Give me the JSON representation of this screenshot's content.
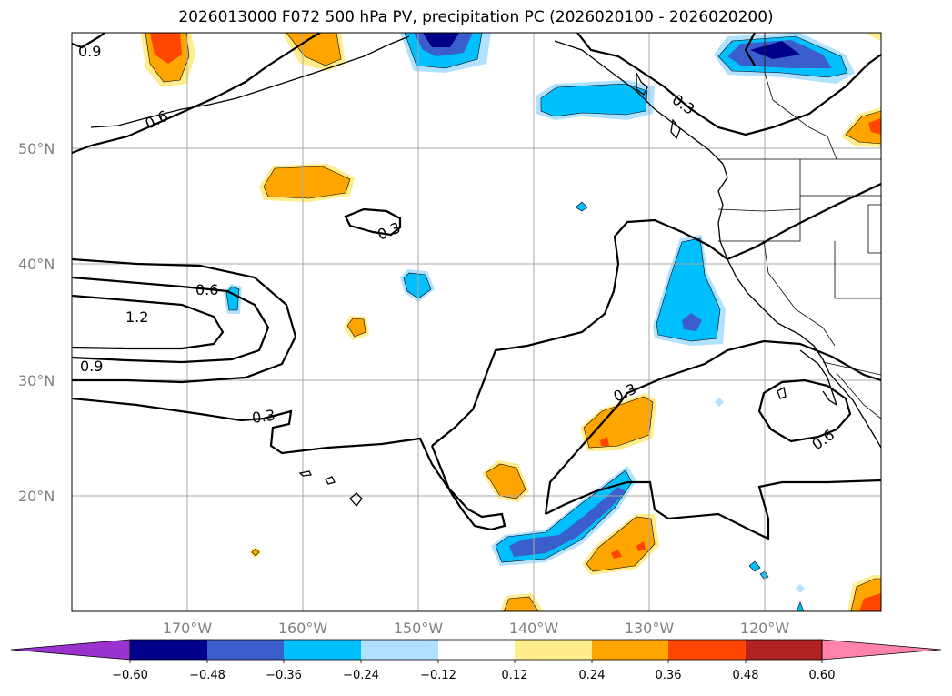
{
  "title": "2026013000 F072 500 hPa PV, precipitation PC (2026020100 - 2026020200)",
  "map": {
    "lat_labels": [
      "50°N",
      "40°N",
      "30°N",
      "20°N"
    ],
    "lon_labels": [
      "170°W",
      "160°W",
      "150°W",
      "140°W",
      "130°W",
      "120°W"
    ]
  },
  "contour_labels": [
    "0.9",
    "0.6",
    "0.3",
    "0.3",
    "0.6",
    "1.2",
    "0.9",
    "0.3",
    "0.3",
    "0.6"
  ],
  "colorbar": {
    "ticks": [
      "−0.60",
      "−0.48",
      "−0.36",
      "−0.24",
      "−0.12",
      "0.12",
      "0.24",
      "0.36",
      "0.48",
      "0.60"
    ],
    "colors": [
      "#9a32cd",
      "#00008b",
      "#3a5fcd",
      "#00bfff",
      "#b0e2ff",
      "#ffffff",
      "#ffec8b",
      "#ffa500",
      "#ff4500",
      "#b22222",
      "#ff82ab"
    ]
  },
  "fill_colors": {
    "neg_light": "#b0e2ff",
    "neg_mid": "#00bfff",
    "neg_dark": "#3a5fcd",
    "neg_darkest": "#00008b",
    "pos_light": "#ffec8b",
    "pos_mid": "#ffa500",
    "pos_dark": "#ff4500"
  }
}
